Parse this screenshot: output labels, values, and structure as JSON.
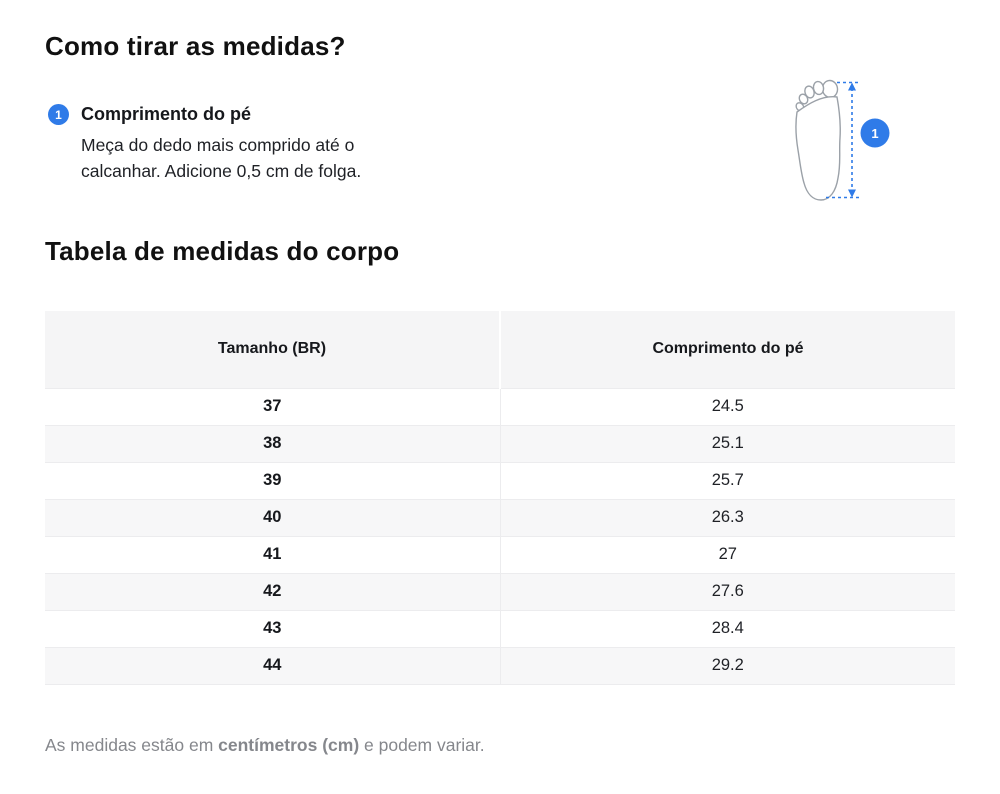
{
  "page": {
    "title": "Como tirar as medidas?",
    "section_title": "Tabela de medidas do corpo"
  },
  "measurement": {
    "badge": "1",
    "label": "Comprimento do pé",
    "description_line1": "Meça do dedo mais comprido até o",
    "description_line2": "calcanhar. Adicione 0,5 cm de folga."
  },
  "diagram": {
    "marker": "1",
    "icon": "foot-outline-with-measure-arrow"
  },
  "table": {
    "columns": [
      "Tamanho (BR)",
      "Comprimento do pé"
    ],
    "rows": [
      {
        "size": "37",
        "length": "24.5"
      },
      {
        "size": "38",
        "length": "25.1"
      },
      {
        "size": "39",
        "length": "25.7"
      },
      {
        "size": "40",
        "length": "26.3"
      },
      {
        "size": "41",
        "length": "27"
      },
      {
        "size": "42",
        "length": "27.6"
      },
      {
        "size": "43",
        "length": "28.4"
      },
      {
        "size": "44",
        "length": "29.2"
      }
    ]
  },
  "footnote": {
    "prefix": "As medidas estão em ",
    "bold": "centímetros (cm)",
    "suffix": " e podem variar."
  },
  "colors": {
    "accent_blue": "#2F7BE8",
    "foot_outline": "#9BA1A8",
    "text": "#16181C",
    "muted": "#85878C",
    "table_header_bg": "#F5F5F6",
    "table_stripe_bg": "#F7F7F8",
    "table_border": "#ECECEE"
  }
}
